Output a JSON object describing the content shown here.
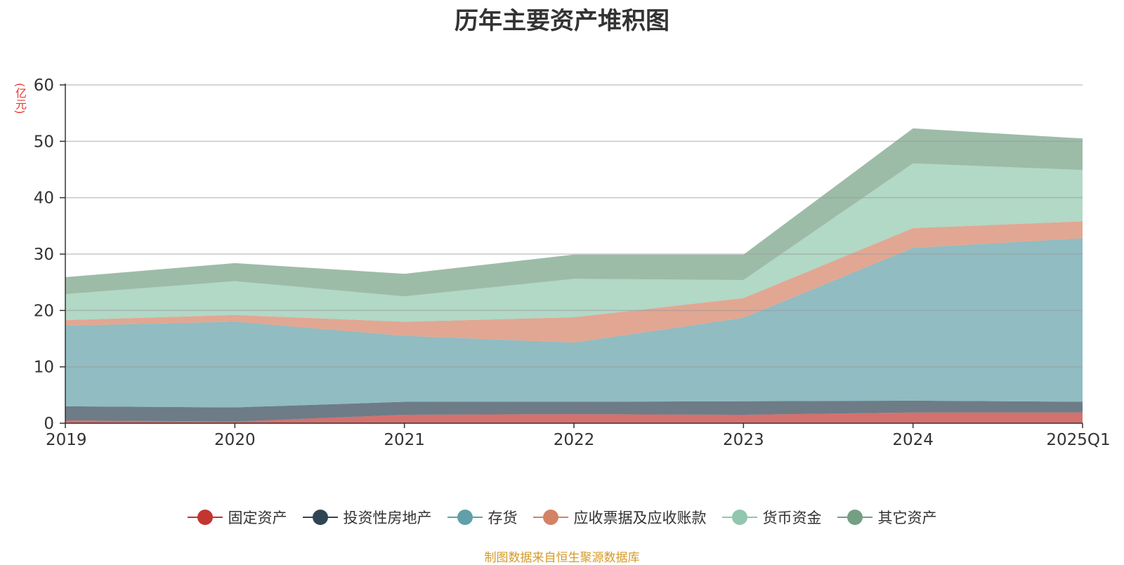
{
  "chart_data": {
    "type": "area",
    "stacked": true,
    "title": "历年主要资产堆积图",
    "unit": "(亿元)",
    "categories": [
      "2019",
      "2020",
      "2021",
      "2022",
      "2023",
      "2024",
      "2025Q1"
    ],
    "ylim": [
      0,
      60
    ],
    "yticks": [
      0,
      10,
      20,
      30,
      40,
      50,
      60
    ],
    "grid": true,
    "legend_position": "bottom",
    "series": [
      {
        "name": "固定资产",
        "color": "#c23531",
        "values": [
          0.5,
          0.3,
          1.5,
          1.6,
          1.5,
          1.9,
          1.9
        ]
      },
      {
        "name": "投资性房地产",
        "color": "#2f4554",
        "values": [
          2.5,
          2.5,
          2.3,
          2.2,
          2.4,
          2.1,
          1.9
        ]
      },
      {
        "name": "存货",
        "color": "#61a0a8",
        "values": [
          14.3,
          15.2,
          11.7,
          10.5,
          14.8,
          27.1,
          29.0
        ]
      },
      {
        "name": "应收票据及应收账款",
        "color": "#d48265",
        "values": [
          1.0,
          1.2,
          2.5,
          4.5,
          3.5,
          3.5,
          3.0
        ]
      },
      {
        "name": "货币资金",
        "color": "#91c7ae",
        "values": [
          4.6,
          6.0,
          4.5,
          6.8,
          3.2,
          11.5,
          9.1
        ]
      },
      {
        "name": "其它资产",
        "color": "#749f83",
        "values": [
          3.0,
          3.2,
          4.0,
          4.3,
          4.5,
          6.2,
          5.6
        ]
      }
    ]
  },
  "source_text": "制图数据来自恒生聚源数据库"
}
